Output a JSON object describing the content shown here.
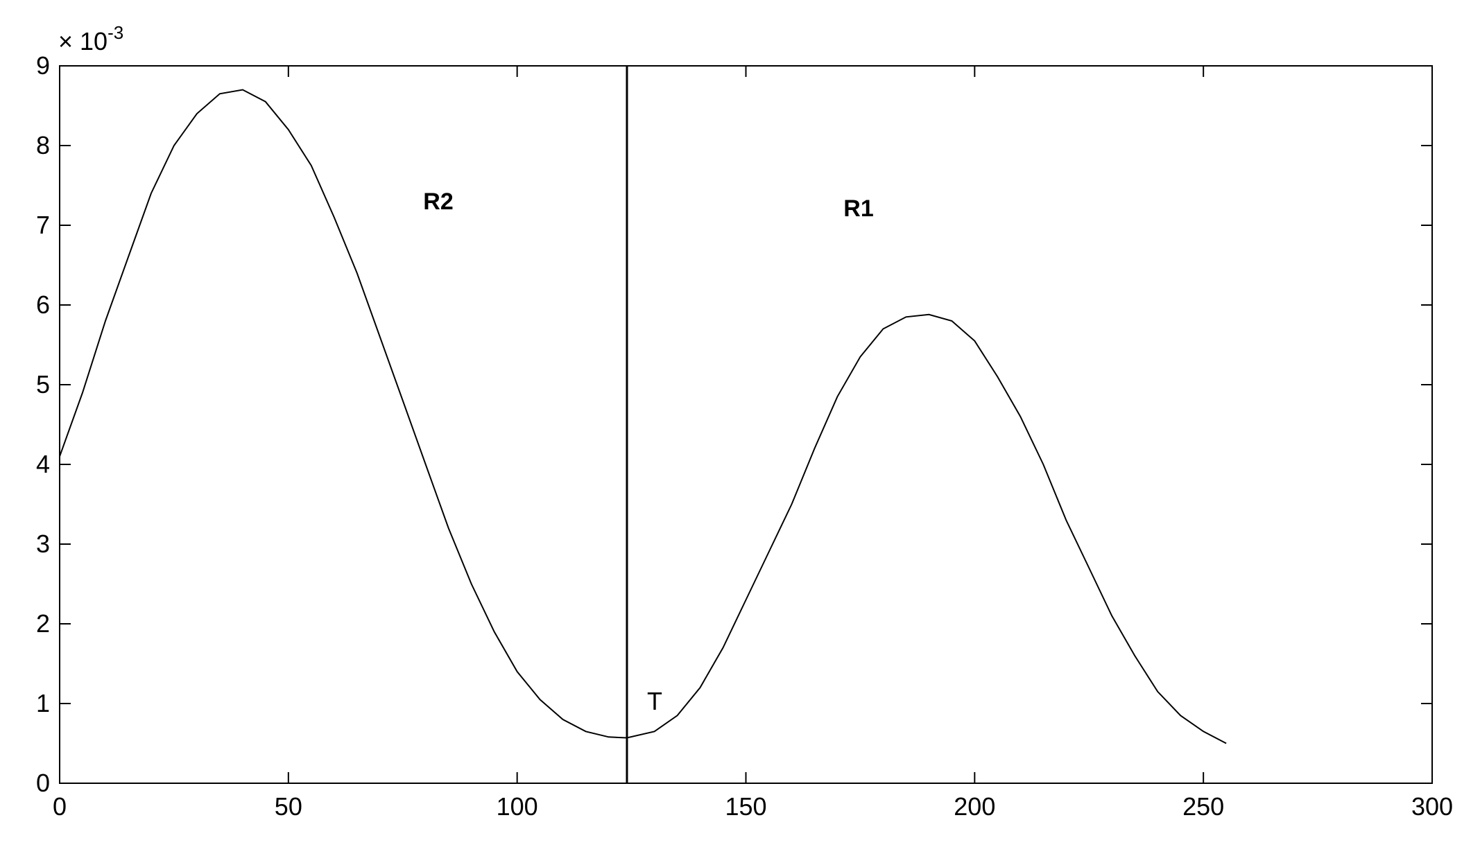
{
  "chart_data": {
    "type": "line",
    "x": [
      0,
      5,
      10,
      15,
      20,
      25,
      30,
      35,
      40,
      45,
      50,
      55,
      60,
      65,
      70,
      75,
      80,
      85,
      90,
      95,
      100,
      105,
      110,
      115,
      120,
      124,
      130,
      135,
      140,
      145,
      150,
      155,
      160,
      165,
      170,
      175,
      180,
      185,
      190,
      195,
      200,
      205,
      210,
      215,
      220,
      225,
      230,
      235,
      240,
      245,
      250,
      255
    ],
    "series": [
      {
        "color": "#000000",
        "values": [
          4.1,
          4.9,
          5.8,
          6.6,
          7.4,
          8.0,
          8.4,
          8.65,
          8.7,
          8.55,
          8.2,
          7.75,
          7.1,
          6.4,
          5.6,
          4.8,
          4.0,
          3.2,
          2.5,
          1.9,
          1.4,
          1.05,
          0.8,
          0.65,
          0.58,
          0.57,
          0.65,
          0.85,
          1.2,
          1.7,
          2.3,
          2.9,
          3.5,
          4.2,
          4.85,
          5.35,
          5.7,
          5.85,
          5.88,
          5.8,
          5.55,
          5.1,
          4.6,
          4.0,
          3.3,
          2.7,
          2.1,
          1.6,
          1.15,
          0.85,
          0.65,
          0.5
        ]
      }
    ],
    "threshold_x": 124,
    "annotations": [
      "R2",
      "R1",
      "T"
    ],
    "y_multiplier": {
      "base": "× 10",
      "exponent": "-3"
    },
    "xlim": [
      0,
      300
    ],
    "xticks": [
      0,
      50,
      100,
      150,
      200,
      250,
      300
    ],
    "ylim": [
      0,
      9
    ],
    "yticks": [
      0,
      1,
      2,
      3,
      4,
      5,
      6,
      7,
      8,
      9
    ],
    "grid": false
  }
}
